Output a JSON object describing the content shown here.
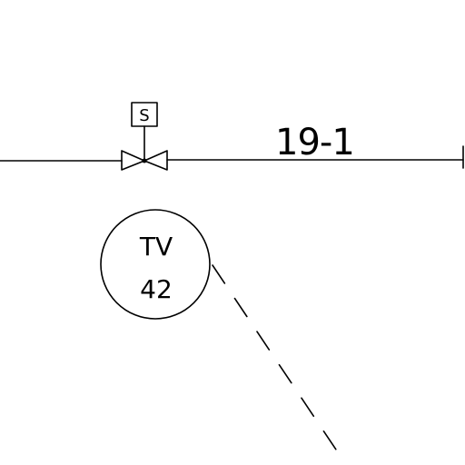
{
  "pipeline": {
    "line_number": "19-1"
  },
  "valve": {
    "actuator_label": "S"
  },
  "instrument": {
    "function_code": "TV",
    "loop_number": "42"
  },
  "colors": {
    "line": "#000000",
    "background": "#ffffff"
  }
}
